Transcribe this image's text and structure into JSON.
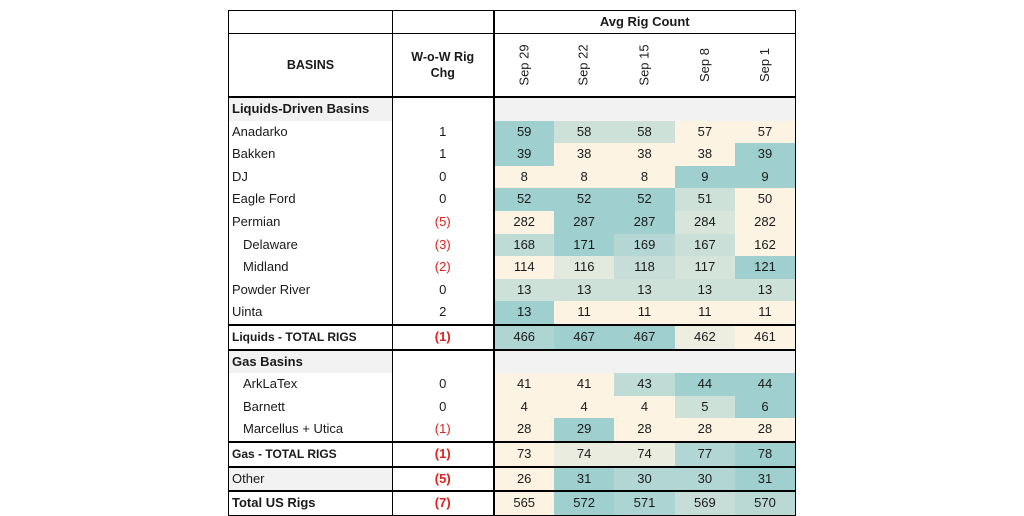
{
  "chart_data": {
    "type": "table",
    "header_group": "Avg Rig Count",
    "basins_header": "BASINS",
    "wow_header": "W-o-W Rig Chg",
    "dates": [
      "Sep 29",
      "Sep 22",
      "Sep 15",
      "Sep 8",
      "Sep 1"
    ],
    "sections": [
      {
        "title": "Liquids-Driven Basins",
        "rows": [
          {
            "name": "Anadarko",
            "indent": false,
            "wow": "1",
            "neg": false,
            "values": [
              59,
              58,
              58,
              57,
              57
            ]
          },
          {
            "name": "Bakken",
            "indent": false,
            "wow": "1",
            "neg": false,
            "values": [
              39,
              38,
              38,
              38,
              39
            ]
          },
          {
            "name": "DJ",
            "indent": false,
            "wow": "0",
            "neg": false,
            "values": [
              8,
              8,
              8,
              9,
              9
            ]
          },
          {
            "name": "Eagle Ford",
            "indent": false,
            "wow": "0",
            "neg": false,
            "values": [
              52,
              52,
              52,
              51,
              50
            ]
          },
          {
            "name": "Permian",
            "indent": false,
            "wow": "(5)",
            "neg": true,
            "values": [
              282,
              287,
              287,
              284,
              282
            ]
          },
          {
            "name": "Delaware",
            "indent": true,
            "wow": "(3)",
            "neg": true,
            "values": [
              168,
              171,
              169,
              167,
              162
            ]
          },
          {
            "name": "Midland",
            "indent": true,
            "wow": "(2)",
            "neg": true,
            "values": [
              114,
              116,
              118,
              117,
              121
            ]
          },
          {
            "name": "Powder River",
            "indent": false,
            "wow": "0",
            "neg": false,
            "values": [
              13,
              13,
              13,
              13,
              13
            ]
          },
          {
            "name": "Uinta",
            "indent": false,
            "wow": "2",
            "neg": false,
            "values": [
              13,
              11,
              11,
              11,
              11
            ]
          }
        ],
        "total": {
          "name": "Liquids - TOTAL RIGS",
          "wow": "(1)",
          "neg": true,
          "values": [
            466,
            467,
            467,
            462,
            461
          ]
        }
      },
      {
        "title": "Gas Basins",
        "rows": [
          {
            "name": "ArkLaTex",
            "indent": true,
            "wow": "0",
            "neg": false,
            "values": [
              41,
              41,
              43,
              44,
              44
            ]
          },
          {
            "name": "Barnett",
            "indent": true,
            "wow": "0",
            "neg": false,
            "values": [
              4,
              4,
              4,
              5,
              6
            ]
          },
          {
            "name": "Marcellus + Utica",
            "indent": true,
            "wow": "(1)",
            "neg": true,
            "values": [
              28,
              29,
              28,
              28,
              28
            ]
          }
        ],
        "total": {
          "name": "Gas - TOTAL RIGS",
          "wow": "(1)",
          "neg": true,
          "values": [
            73,
            74,
            74,
            77,
            78
          ]
        }
      }
    ],
    "other": {
      "name": "Other",
      "wow": "(5)",
      "neg": true,
      "values": [
        26,
        31,
        30,
        30,
        31
      ]
    },
    "grand_total": {
      "name": "Total US Rigs",
      "wow": "(7)",
      "neg": true,
      "values": [
        565,
        572,
        571,
        569,
        570
      ]
    },
    "color_scale": {
      "low": "#fdf3e3",
      "high": "#9fcfcf"
    }
  }
}
